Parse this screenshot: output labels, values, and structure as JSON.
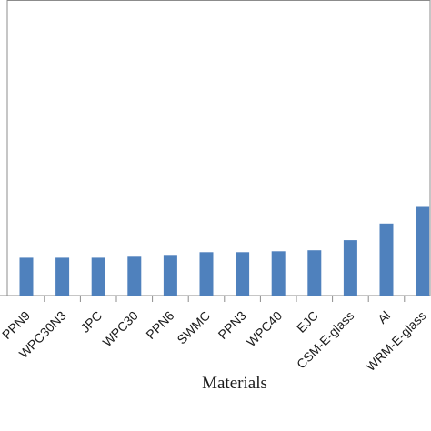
{
  "chart_data": {
    "type": "bar",
    "title": "",
    "xlabel": "Materials",
    "ylabel": "",
    "categories": [
      "PPN9",
      "WPC30N3",
      "JPC",
      "WPC30",
      "PPN6",
      "SWMC",
      "PPN3",
      "WPC40",
      "EJC",
      "CSM-E-glass",
      "Al",
      "WRM-E-glass"
    ],
    "values": [
      41,
      41,
      41,
      42,
      44,
      47,
      47,
      48,
      49,
      60,
      78,
      96
    ],
    "ylim": [
      0,
      320
    ],
    "grid": false,
    "legend": "none",
    "bar_color": "#4f81bd",
    "axis_color": "#8c8c8c"
  }
}
